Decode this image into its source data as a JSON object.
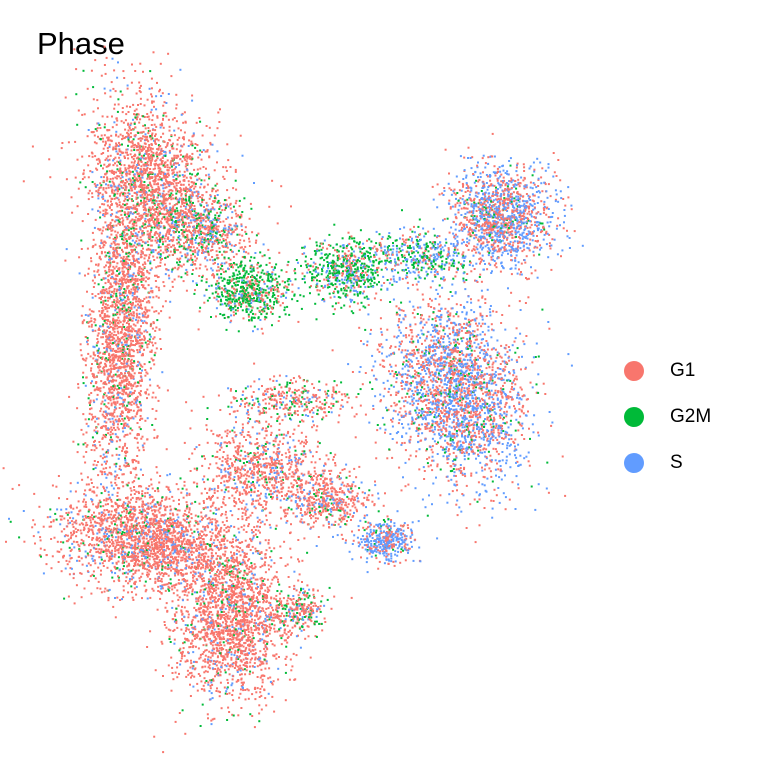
{
  "chart_data": {
    "type": "scatter",
    "title": "Phase",
    "xlabel": "",
    "ylabel": "",
    "axes_visible": false,
    "grid": false,
    "legend_position": "right",
    "series": [
      {
        "name": "G1",
        "color": "#F8766D"
      },
      {
        "name": "G2M",
        "color": "#00BA38"
      },
      {
        "name": "S",
        "color": "#619CFF"
      }
    ]
  }
}
